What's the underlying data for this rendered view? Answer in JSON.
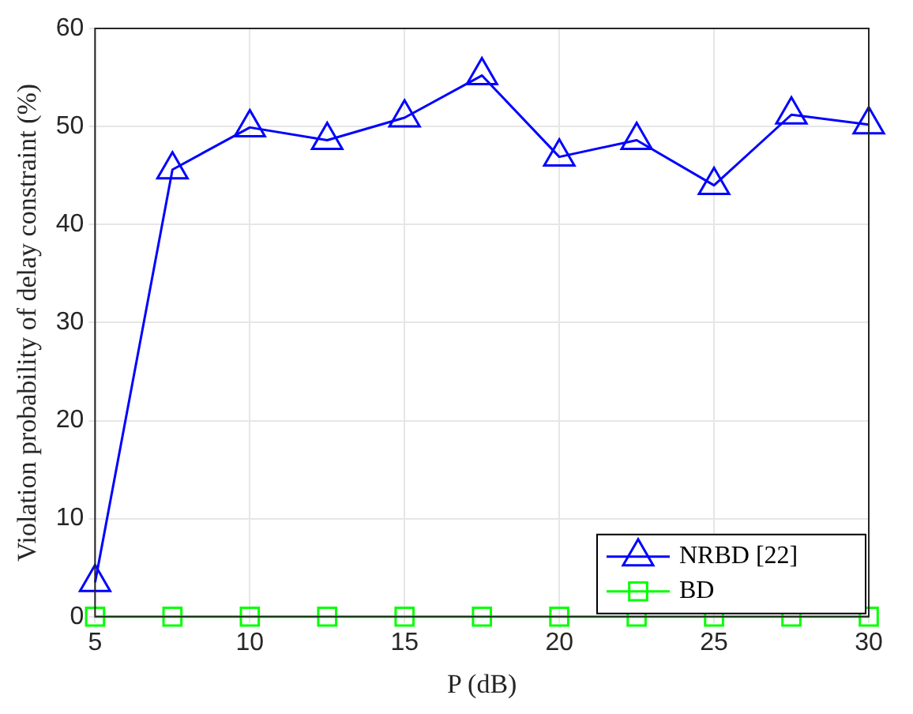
{
  "chart_data": {
    "type": "line",
    "xlabel": "P (dB)",
    "ylabel": "Violation probability of delay constraint (%)",
    "x": [
      5,
      7.5,
      10,
      12.5,
      15,
      17.5,
      20,
      22.5,
      25,
      27.5,
      30
    ],
    "series": [
      {
        "name": "NRBD [22]",
        "color": "#0000ff",
        "marker": "triangle",
        "values": [
          3.5,
          45.6,
          49.9,
          48.6,
          50.9,
          55.2,
          46.9,
          48.6,
          44,
          51.2,
          50.2
        ]
      },
      {
        "name": "BD",
        "color": "#00ff00",
        "marker": "square",
        "values": [
          0,
          0,
          0,
          0,
          0,
          0,
          0,
          0,
          0,
          0,
          0
        ]
      }
    ],
    "xlim": [
      5,
      30
    ],
    "xticks": [
      5,
      10,
      15,
      20,
      25,
      30
    ],
    "ylim": [
      0,
      60
    ],
    "yticks": [
      0,
      10,
      20,
      30,
      40,
      50,
      60
    ],
    "grid": true,
    "legend": "bottom right",
    "line_style": "solid"
  }
}
